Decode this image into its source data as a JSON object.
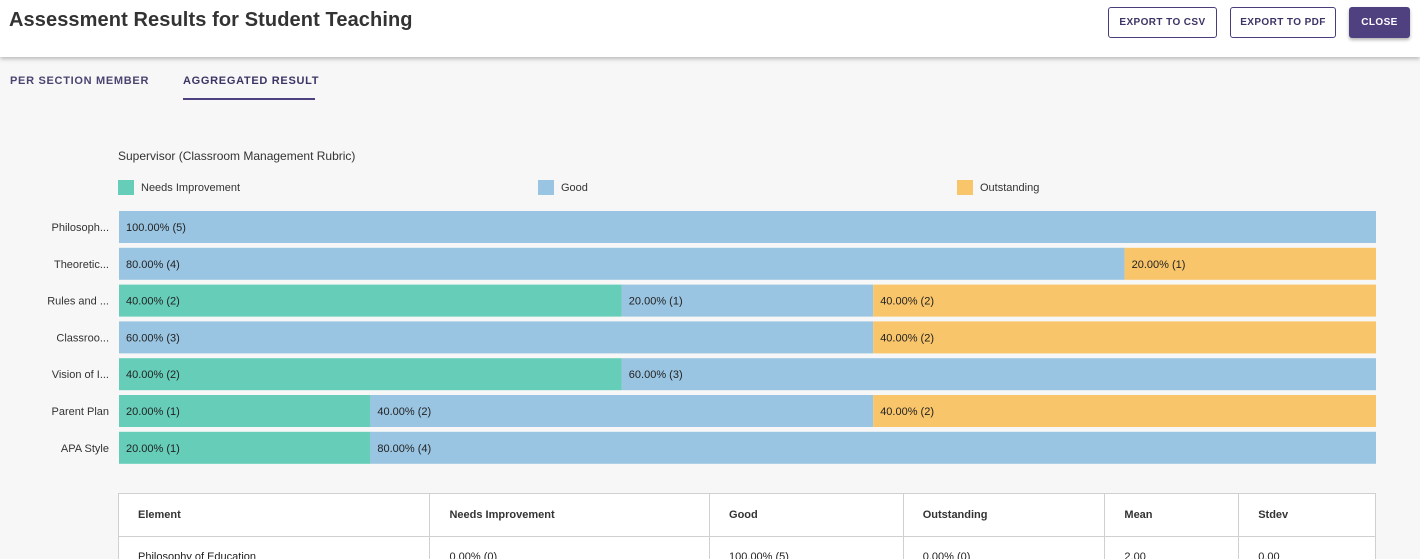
{
  "header": {
    "title": "Assessment Results for Student Teaching",
    "export_csv": "EXPORT TO CSV",
    "export_pdf": "EXPORT TO PDF",
    "close": "CLOSE"
  },
  "tabs": [
    {
      "label": "PER SECTION MEMBER",
      "active": false
    },
    {
      "label": "AGGREGATED RESULT",
      "active": true
    }
  ],
  "colors": {
    "needs_improvement": "#66cdb8",
    "good": "#9ac5e2",
    "outstanding": "#f8c56b",
    "accent": "#4f4080"
  },
  "chart_data": {
    "type": "bar",
    "orientation": "horizontal",
    "stacked": true,
    "title": "Supervisor (Classroom Management Rubric)",
    "legend": [
      "Needs Improvement",
      "Good",
      "Outstanding"
    ],
    "legend_position": "top",
    "categories": [
      "Philosoph...",
      "Theoretic...",
      "Rules and ...",
      "Classroo...",
      "Vision of I...",
      "Parent Plan",
      "APA Style"
    ],
    "series": [
      {
        "name": "Needs Improvement",
        "color": "#66cdb8",
        "values": [
          0,
          0,
          40,
          0,
          40,
          20,
          20
        ],
        "labels": [
          "",
          "",
          "40.00% (2)",
          "",
          "40.00% (2)",
          "20.00% (1)",
          "20.00% (1)"
        ]
      },
      {
        "name": "Good",
        "color": "#9ac5e2",
        "values": [
          100,
          80,
          20,
          60,
          60,
          40,
          80
        ],
        "labels": [
          "100.00% (5)",
          "80.00% (4)",
          "20.00% (1)",
          "60.00% (3)",
          "60.00% (3)",
          "40.00% (2)",
          "80.00% (4)"
        ]
      },
      {
        "name": "Outstanding",
        "color": "#f8c56b",
        "values": [
          0,
          20,
          40,
          40,
          0,
          40,
          0
        ],
        "labels": [
          "",
          "20.00% (1)",
          "40.00% (2)",
          "40.00% (2)",
          "",
          "40.00% (2)",
          ""
        ]
      }
    ],
    "xlim": [
      0,
      100
    ]
  },
  "table": {
    "headers": [
      "Element",
      "Needs Improvement",
      "Good",
      "Outstanding",
      "Mean",
      "Stdev"
    ],
    "rows": [
      [
        "Philosophy of Education",
        "0.00% (0)",
        "100.00% (5)",
        "0.00% (0)",
        "2.00",
        "0.00"
      ]
    ]
  }
}
